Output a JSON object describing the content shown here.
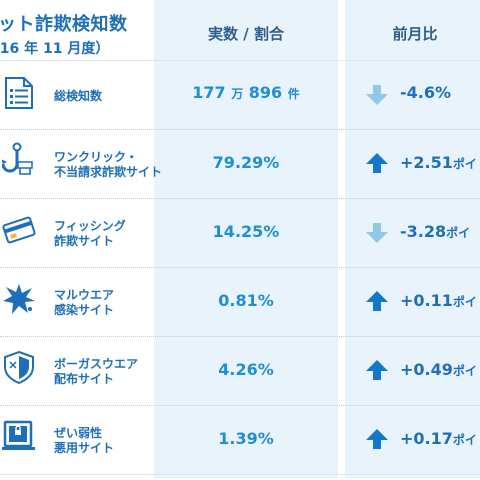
{
  "header": {
    "title_line1": "ット詐欺検知数",
    "title_line2": "016 年 11 月度）",
    "col_value": "実数 / 割合",
    "col_change": "前月比"
  },
  "colors": {
    "accent_blue": "#1e6fb7",
    "value_blue": "#1e8fd6",
    "up_arrow": "#1378c9",
    "down_arrow": "#8ecae8",
    "column_bg": "#e9f3fb"
  },
  "rows": [
    {
      "icon": "document-list-icon",
      "label_line1": "総検知数",
      "label_line2": "",
      "value_a": "177",
      "value_a_unit": "万",
      "value_b": "896",
      "value_b_unit": "件",
      "direction": "down",
      "change": "-4.6%",
      "change_unit": ""
    },
    {
      "icon": "one-click-hook-icon",
      "label_line1": "ワンクリック・",
      "label_line2": "不当請求詐欺サイト",
      "value": "79.29%",
      "direction": "up",
      "change": "+2.51",
      "change_unit": "ポイ"
    },
    {
      "icon": "phishing-card-icon",
      "label_line1": "フィッシング",
      "label_line2": "詐欺サイト",
      "value": "14.25%",
      "direction": "down",
      "change": "-3.28",
      "change_unit": "ポイ"
    },
    {
      "icon": "malware-burst-icon",
      "label_line1": "マルウエア",
      "label_line2": "感染サイト",
      "value": "0.81%",
      "direction": "up",
      "change": "+0.11",
      "change_unit": "ポイ"
    },
    {
      "icon": "bogus-shield-icon",
      "label_line1": "ボーガスウエア",
      "label_line2": "配布サイト",
      "value": "4.26%",
      "direction": "up",
      "change": "+0.49",
      "change_unit": "ポイ"
    },
    {
      "icon": "vulnerability-monitor-icon",
      "label_line1": "ぜい弱性",
      "label_line2": "悪用サイト",
      "value": "1.39%",
      "direction": "up",
      "change": "+0.17",
      "change_unit": "ポイ"
    }
  ]
}
